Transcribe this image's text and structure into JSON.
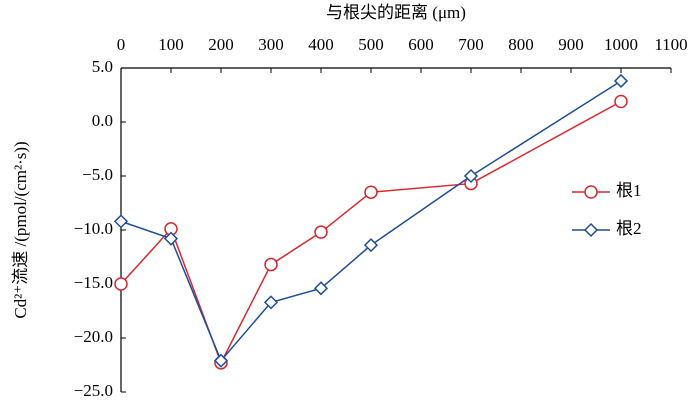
{
  "chart_data": {
    "type": "line",
    "x_label": "与根尖的距离 (μm)",
    "y_label": "Cd²⁺流速 /(pmol/(cm²·s))",
    "x": [
      0,
      100,
      200,
      300,
      400,
      500,
      700,
      1000
    ],
    "series": [
      {
        "name": "根1",
        "color": "#d7282f",
        "marker": "circle",
        "values": [
          -15.0,
          -9.9,
          -22.3,
          -13.2,
          -10.2,
          -6.5,
          -5.7,
          1.9
        ]
      },
      {
        "name": "根2",
        "color": "#1f4e96",
        "marker": "diamond",
        "values": [
          -9.2,
          -10.8,
          -22.1,
          -16.7,
          -15.4,
          -11.4,
          -5.0,
          3.8
        ]
      }
    ],
    "xlim": [
      0,
      1100
    ],
    "xticks": [
      0,
      100,
      200,
      300,
      400,
      500,
      600,
      700,
      800,
      900,
      1000,
      1100
    ],
    "ylim": [
      -25,
      5
    ],
    "yticks": [
      {
        "value": -25,
        "label": "−25.0"
      },
      {
        "value": -20,
        "label": "−20.0"
      },
      {
        "value": -15,
        "label": "−15.0"
      },
      {
        "value": -10,
        "label": "−10.0"
      },
      {
        "value": -5,
        "label": "−5.0"
      },
      {
        "value": 0,
        "label": "0.0"
      },
      {
        "value": 5,
        "label": "5.0"
      }
    ],
    "legend": "right"
  }
}
